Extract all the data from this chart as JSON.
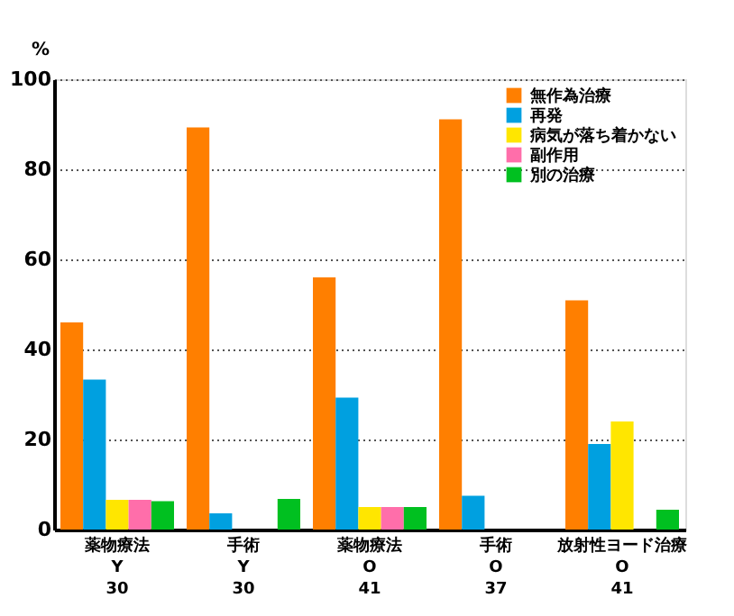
{
  "chart_data": {
    "type": "bar",
    "ylabel": "%",
    "categories": [
      "薬物療法\nY\n30",
      "手術\nY\n30",
      "薬物療法\nO\n41",
      "手術\nO\n37",
      "放射性ヨード治療\nO\n41"
    ],
    "series": [
      {
        "name": "無作為治療",
        "color": "#ff7f00",
        "values": [
          46,
          89.3,
          56,
          91.1,
          50.9
        ]
      },
      {
        "name": "再発",
        "color": "#00a0e0",
        "values": [
          33.3,
          3.6,
          29.3,
          7.5,
          19
        ]
      },
      {
        "name": "病気が落ち着かない",
        "color": "#ffe600",
        "values": [
          6.6,
          null,
          5,
          null,
          24
        ]
      },
      {
        "name": "副作用",
        "color": "#ff6eaa",
        "values": [
          6.6,
          null,
          5,
          null,
          null
        ]
      },
      {
        "name": "別の治療",
        "color": "#00c020",
        "values": [
          6.3,
          6.8,
          5,
          null,
          4.4
        ]
      }
    ],
    "ylim": [
      0,
      100
    ],
    "yticks": [
      0,
      20,
      40,
      60,
      80,
      100
    ],
    "grid": "y",
    "legend": "top right"
  }
}
